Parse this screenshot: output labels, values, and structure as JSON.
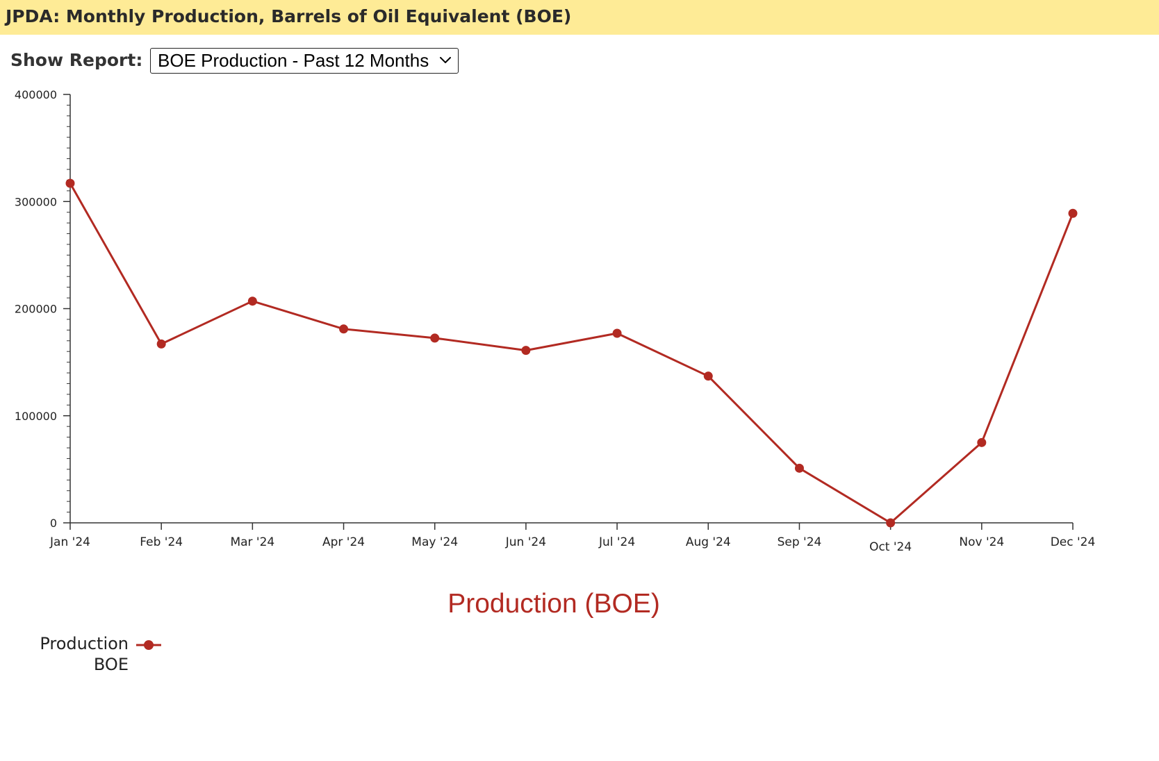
{
  "header": {
    "title": "JPDA: Monthly Production, Barrels of Oil Equivalent (BOE)"
  },
  "report_selector": {
    "label": "Show Report:",
    "selected": "BOE Production - Past 12 Months",
    "icon": "chevron-down-icon"
  },
  "colors": {
    "header_background": "#feeb96",
    "series": "#b22a22",
    "axis": "#333333"
  },
  "chart_data": {
    "type": "line",
    "title": "Production (BOE)",
    "xlabel": "",
    "ylabel": "",
    "categories": [
      "Jan '24",
      "Feb '24",
      "Mar '24",
      "Apr '24",
      "May '24",
      "Jun '24",
      "Jul '24",
      "Aug '24",
      "Sep '24",
      "Oct '24",
      "Nov '24",
      "Dec '24"
    ],
    "series": [
      {
        "name_lines": [
          "Production",
          "BOE"
        ],
        "values": [
          317000,
          167000,
          207000,
          181000,
          172500,
          161000,
          177000,
          137000,
          51000,
          0,
          75000,
          289000
        ]
      }
    ],
    "ylim": [
      0,
      400000
    ],
    "yticks": [
      0,
      100000,
      200000,
      300000,
      400000
    ],
    "y_minor_ticks_per_major": 10,
    "grid": false,
    "legend_position": "bottom-left"
  }
}
